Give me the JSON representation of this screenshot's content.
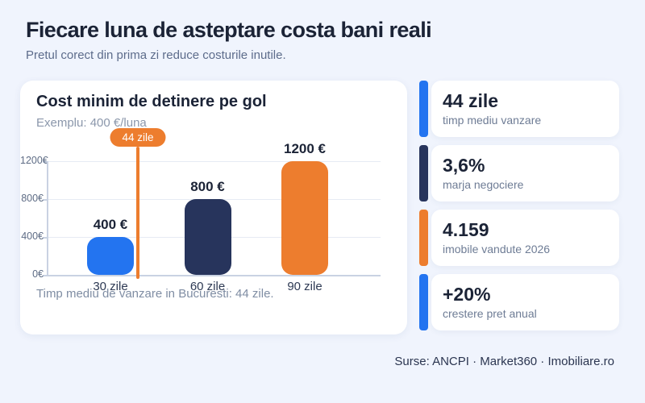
{
  "page": {
    "title": "Fiecare luna de asteptare costa bani reali",
    "subtitle": "Pretul corect din prima zi reduce costurile inutile.",
    "sources": "Surse: ANCPI · Market360 · Imobiliare.ro",
    "background": "#f0f4fd"
  },
  "chart_card": {
    "title": "Cost minim de detinere pe gol",
    "subtitle": "Exemplu: 400 €/luna",
    "footnote": "Timp mediu de vanzare in Bucuresti: 44 zile."
  },
  "chart_data": {
    "type": "bar",
    "title": "Cost minim de detinere pe gol",
    "categories": [
      "30 zile",
      "60 zile",
      "90 zile"
    ],
    "values": [
      400,
      800,
      1200
    ],
    "value_labels": [
      "400 €",
      "800 €",
      "1200 €"
    ],
    "bar_colors": [
      "#2374f0",
      "#27345c",
      "#ed7d2e"
    ],
    "xlabel": "",
    "ylabel": "",
    "ylim": [
      0,
      1200
    ],
    "yticks": [
      1200,
      800,
      400,
      0
    ],
    "ytick_labels": [
      "1200€",
      "800€",
      "400€",
      "0€"
    ],
    "grid": true,
    "legend": false,
    "marker": {
      "label": "44 zile",
      "value_days": 44,
      "color": "#ed7d2e"
    }
  },
  "stats": [
    {
      "value": "44 zile",
      "label": "timp mediu vanzare",
      "accent": "#2374f0"
    },
    {
      "value": "3,6%",
      "label": "marja negociere",
      "accent": "#27345c"
    },
    {
      "value": "4.159",
      "label": "imobile vandute 2026",
      "accent": "#ed7d2e"
    },
    {
      "value": "+20%",
      "label": "crestere pret anual",
      "accent": "#2374f0"
    }
  ]
}
